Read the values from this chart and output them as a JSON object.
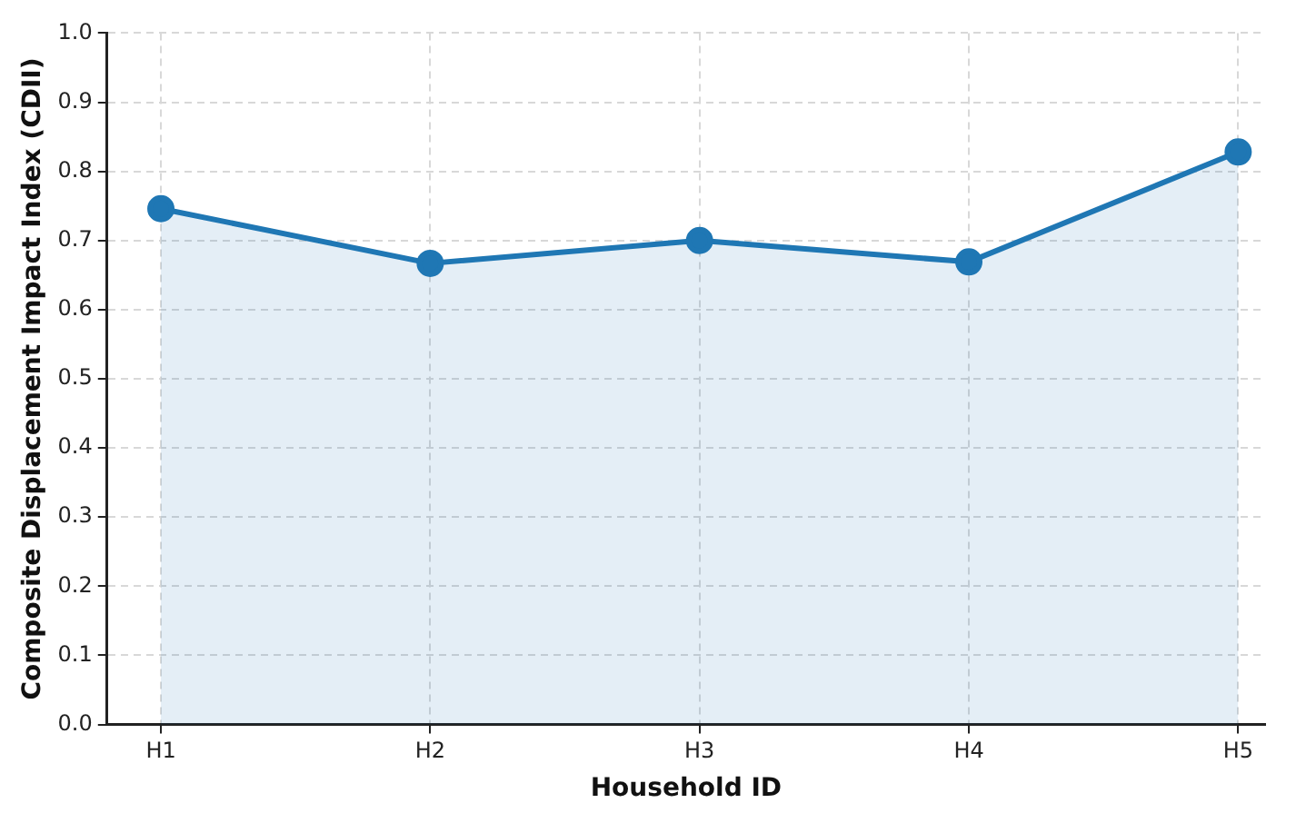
{
  "chart_data": {
    "type": "area",
    "xlabel": "Household ID",
    "ylabel": "Composite Displacement Impact Index (CDII)",
    "categories": [
      "H1",
      "H2",
      "H3",
      "H4",
      "H5"
    ],
    "series": [
      {
        "color": "#1f77b4",
        "values": [
          0.746,
          0.667,
          0.7,
          0.669,
          0.828
        ]
      }
    ],
    "ylim": [
      0,
      1
    ],
    "yticks": [
      {
        "value": 0,
        "label": "0.0"
      },
      {
        "value": 0.1,
        "label": "0.1"
      },
      {
        "value": 0.2,
        "label": "0.2"
      },
      {
        "value": 0.3,
        "label": "0.3"
      },
      {
        "value": 0.4,
        "label": "0.4"
      },
      {
        "value": 0.5,
        "label": "0.5"
      },
      {
        "value": 0.6,
        "label": "0.6"
      },
      {
        "value": 0.7,
        "label": "0.7"
      },
      {
        "value": 0.8,
        "label": "0.8"
      },
      {
        "value": 0.9,
        "label": "0.9"
      },
      {
        "value": 1,
        "label": "1.0"
      }
    ],
    "grid": true,
    "legend": false,
    "marker": "circle",
    "line_style": "solid"
  }
}
